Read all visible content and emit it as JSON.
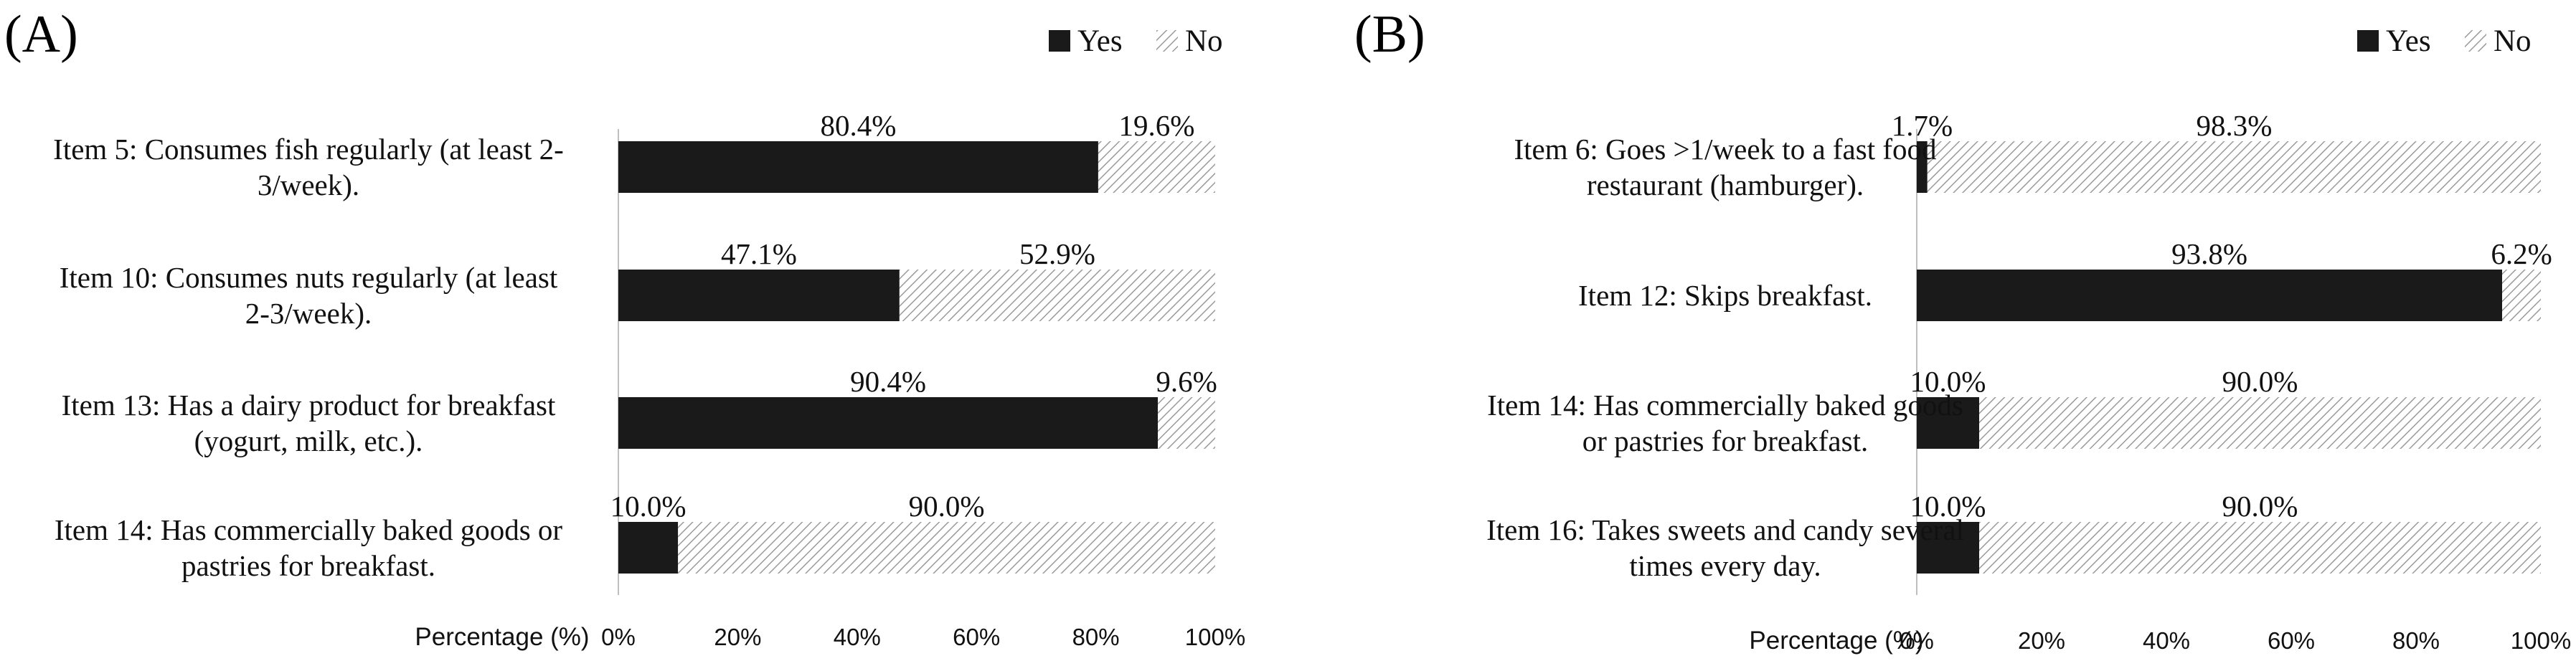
{
  "chart_data": [
    {
      "type": "bar",
      "orientation": "horizontal",
      "stacked": true,
      "panel_label": "(A)",
      "categories": [
        [
          "Item 5: Consumes fish regularly (at least 2-",
          "3/week)."
        ],
        [
          "Item 10: Consumes nuts regularly (at least",
          "2-3/week)."
        ],
        [
          "Item 13: Has a dairy product for breakfast",
          "(yogurt, milk, etc.)."
        ],
        [
          "Item 14: Has commercially baked goods or",
          "pastries for breakfast."
        ]
      ],
      "series": [
        {
          "name": "Yes",
          "values": [
            80.4,
            47.1,
            90.4,
            10.0
          ],
          "labels": [
            "80.4%",
            "47.1%",
            "90.4%",
            "10.0%"
          ],
          "color": "#1a1a1a"
        },
        {
          "name": "No",
          "values": [
            19.6,
            52.9,
            9.6,
            90.0
          ],
          "labels": [
            "19.6%",
            "52.9%",
            "9.6%",
            "90.0%"
          ],
          "color": "hatched-gray"
        }
      ],
      "xlabel": "Percentage (%)",
      "xticks": [
        "0%",
        "20%",
        "40%",
        "60%",
        "80%",
        "100%"
      ],
      "xlim": [
        0,
        100
      ],
      "legend_position": "top-right",
      "grid": false
    },
    {
      "type": "bar",
      "orientation": "horizontal",
      "stacked": true,
      "panel_label": "(B)",
      "categories": [
        [
          "Item 6: Goes >1/week to a fast food",
          "restaurant (hamburger)."
        ],
        [
          "Item 12: Skips breakfast."
        ],
        [
          "Item 14: Has commercially baked goods",
          "or pastries for breakfast."
        ],
        [
          "Item 16: Takes sweets and candy several",
          "times every day."
        ]
      ],
      "series": [
        {
          "name": "Yes",
          "values": [
            1.7,
            93.8,
            10.0,
            10.0
          ],
          "labels": [
            "1.7%",
            "93.8%",
            "10.0%",
            "10.0%"
          ],
          "color": "#1a1a1a"
        },
        {
          "name": "No",
          "values": [
            98.3,
            6.2,
            90.0,
            90.0
          ],
          "labels": [
            "98.3%",
            "6.2%",
            "90.0%",
            "90.0%"
          ],
          "color": "hatched-gray"
        }
      ],
      "xlabel": "Percentage (%)",
      "xticks": [
        "0%",
        "20%",
        "40%",
        "60%",
        "80%",
        "100%"
      ],
      "xlim": [
        0,
        100
      ],
      "legend_position": "top-right",
      "grid": false
    }
  ]
}
